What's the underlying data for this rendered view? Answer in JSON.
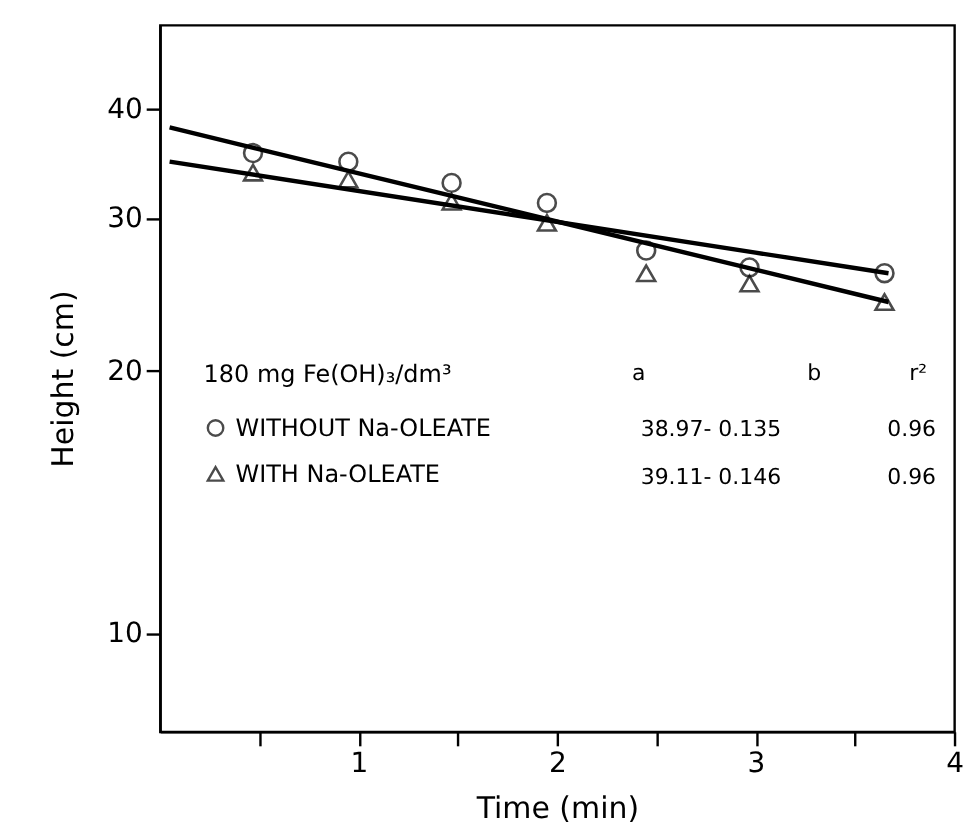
{
  "chart_data": {
    "type": "scatter",
    "xlabel": "Time (min)",
    "ylabel": "Height (cm)",
    "legend_title": "180 mg Fe(OH)₃/dm³",
    "legend": "left",
    "log": "y",
    "grid": false,
    "xlim": [
      0,
      4
    ],
    "xticks": [
      {
        "value": 0.5,
        "label": null
      },
      1,
      {
        "value": 1.5,
        "label": null
      },
      2,
      {
        "value": 2.5,
        "label": null
      },
      3,
      {
        "value": 3.5,
        "label": null
      },
      4
    ],
    "ylim": [
      7.7,
      50
    ],
    "yticks": [
      10,
      20,
      30,
      40
    ],
    "series": [
      {
        "name": "WITHOUT Na-OLEATE",
        "marker": "circle",
        "color": "#000000",
        "x": [
          0.47,
          0.95,
          1.47,
          1.95,
          2.45,
          2.97,
          3.65
        ],
        "values": [
          35.6,
          34.8,
          32.9,
          31.2,
          27.5,
          26.3,
          25.9
        ]
      },
      {
        "name": "WITH Na-OLEATE",
        "marker": "triangle",
        "color": "#000000",
        "x": [
          0.47,
          0.95,
          1.47,
          1.95,
          2.45,
          2.97,
          3.65
        ],
        "values": [
          33.8,
          33.2,
          31.3,
          29.6,
          25.9,
          25.2,
          24.0
        ]
      },
      {
        "type": "line",
        "color": "#000000",
        "line_style": "solid",
        "x": [
          0.05,
          3.67
        ],
        "values": [
          34.8,
          25.9
        ]
      },
      {
        "type": "line",
        "color": "#000000",
        "line_style": "solid",
        "x": [
          0.05,
          3.67
        ],
        "values": [
          38.1,
          24.0
        ]
      }
    ],
    "annotations": [
      "a",
      "b",
      "r²",
      "38.97- 0.135",
      "0.96",
      "39.11- 0.146",
      "0.96"
    ]
  }
}
